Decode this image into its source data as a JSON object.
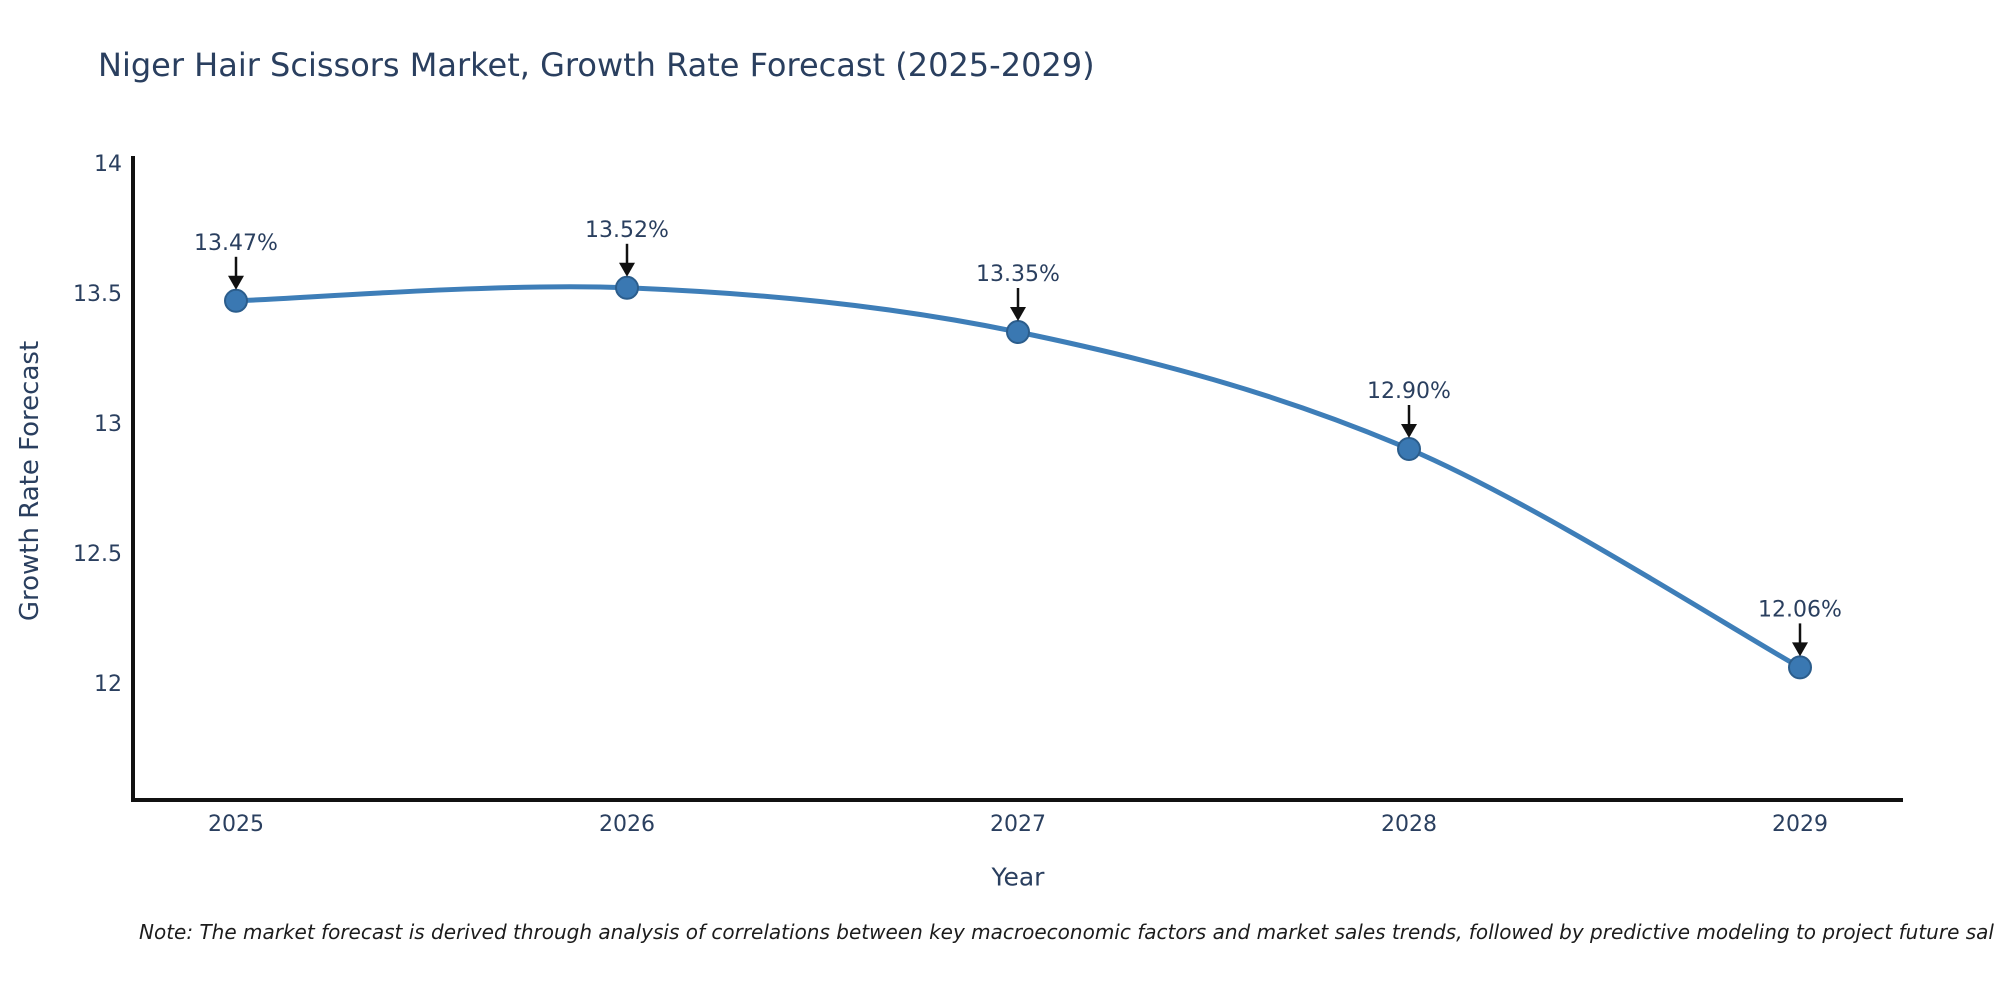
{
  "page": {
    "title": "Niger Hair Scissors Market, Growth Rate Forecast (2025-2029)",
    "footnote": "Note: The market forecast is derived through analysis of correlations between key macroeconomic factors and market sales trends, followed by predictive modeling to project future sal"
  },
  "chart_data": {
    "type": "line",
    "title": "Niger Hair Scissors Market, Growth Rate Forecast (2025-2029)",
    "xlabel": "Year",
    "ylabel": "Growth Rate Forecast",
    "x": [
      "2025",
      "2026",
      "2027",
      "2028",
      "2029"
    ],
    "series": [
      {
        "name": "Growth Rate Forecast",
        "values": [
          13.47,
          13.52,
          13.35,
          12.9,
          12.06
        ]
      }
    ],
    "point_labels": [
      "13.47%",
      "13.52%",
      "13.35%",
      "12.90%",
      "12.06%"
    ],
    "yticks": [
      "12",
      "12.5",
      "13",
      "13.5",
      "14"
    ],
    "ylim": [
      11.55,
      14
    ],
    "line_shape": "spline",
    "grid": false,
    "legend": "none",
    "annotation_style": "down-arrow",
    "colors": {
      "line": "#3e7eb8",
      "marker": "#3a78b2",
      "marker_edge": "#2b5d8c",
      "axis": "#111111",
      "text": "#2a3f5f",
      "arrow": "#111111",
      "note": "#1c1c1c"
    }
  }
}
